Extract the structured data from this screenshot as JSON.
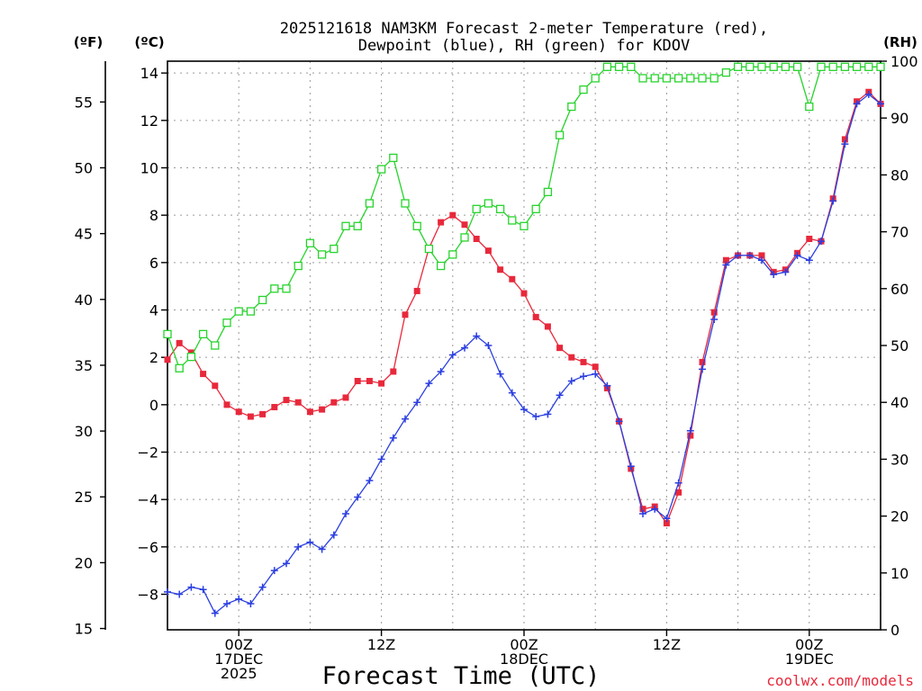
{
  "chart_data": {
    "type": "line",
    "title_line1": "2025121618 NAM3KM Forecast 2-meter Temperature (red),",
    "title_line2": "Dewpoint (blue), RH (green) for KDOV",
    "unit_f": "(ºF)",
    "unit_c": "(ºC)",
    "unit_rh": "(RH)",
    "xlabel": "Forecast Time (UTC)",
    "credit": "coolwx.com/models",
    "x_range_hours": [
      0,
      60
    ],
    "ylim_c": [
      -9.5,
      14.5
    ],
    "ylim_f": [
      14.9,
      58.1
    ],
    "ylim_rh": [
      0,
      100
    ],
    "left_f_ticks": [
      "15",
      "20",
      "25",
      "30",
      "35",
      "40",
      "45",
      "50",
      "55"
    ],
    "left_c_ticks": [
      "−8",
      "−6",
      "−4",
      "−2",
      "0",
      "2",
      "4",
      "6",
      "8",
      "10",
      "12",
      "14"
    ],
    "right_rh_ticks": [
      "0",
      "10",
      "20",
      "30",
      "40",
      "50",
      "60",
      "70",
      "80",
      "90",
      "100"
    ],
    "x_ticks": [
      {
        "hour": 6,
        "labels": [
          "00Z",
          "17DEC",
          "2025"
        ]
      },
      {
        "hour": 18,
        "labels": [
          "12Z"
        ]
      },
      {
        "hour": 30,
        "labels": [
          "00Z",
          "18DEC"
        ]
      },
      {
        "hour": 42,
        "labels": [
          "12Z"
        ]
      },
      {
        "hour": 54,
        "labels": [
          "00Z",
          "19DEC"
        ]
      }
    ],
    "series": [
      {
        "name": "Temperature",
        "color": "#e8283b",
        "marker": "filled-square",
        "unit": "C",
        "values": [
          1.9,
          2.6,
          2.2,
          1.3,
          0.8,
          0.0,
          -0.3,
          -0.5,
          -0.4,
          -0.1,
          0.2,
          0.1,
          -0.3,
          -0.2,
          0.1,
          0.3,
          1.0,
          1.0,
          0.9,
          1.4,
          3.8,
          4.8,
          6.6,
          7.7,
          8.0,
          7.6,
          7.0,
          6.5,
          5.7,
          5.3,
          4.7,
          3.7,
          3.3,
          2.4,
          2.0,
          1.8,
          1.6,
          0.7,
          -0.7,
          -2.7,
          -4.4,
          -4.3,
          -5.0,
          -3.7,
          -1.3,
          1.8,
          3.9,
          6.1,
          6.3,
          6.3,
          6.3,
          5.6,
          5.7,
          6.4,
          7.0,
          6.9,
          8.7,
          11.2,
          12.8,
          13.2,
          12.7
        ]
      },
      {
        "name": "Dewpoint",
        "color": "#2b3fe0",
        "marker": "plus",
        "unit": "C",
        "values": [
          -7.9,
          -8.0,
          -7.7,
          -7.8,
          -8.8,
          -8.4,
          -8.2,
          -8.4,
          -7.7,
          -7.0,
          -6.7,
          -6.0,
          -5.8,
          -6.1,
          -5.5,
          -4.6,
          -3.9,
          -3.2,
          -2.3,
          -1.4,
          -0.6,
          0.1,
          0.9,
          1.4,
          2.1,
          2.4,
          2.9,
          2.5,
          1.3,
          0.5,
          -0.2,
          -0.5,
          -0.4,
          0.4,
          1.0,
          1.2,
          1.3,
          0.8,
          -0.7,
          -2.6,
          -4.6,
          -4.4,
          -4.8,
          -3.3,
          -1.1,
          1.5,
          3.6,
          5.9,
          6.3,
          6.3,
          6.1,
          5.5,
          5.6,
          6.3,
          6.1,
          6.9,
          8.6,
          11.0,
          12.7,
          13.1,
          12.7
        ]
      },
      {
        "name": "RH",
        "color": "#27d42c",
        "marker": "open-square",
        "unit": "%",
        "values": [
          52,
          46,
          48,
          52,
          50,
          54,
          56,
          56,
          58,
          60,
          60,
          64,
          68,
          66,
          67,
          71,
          71,
          75,
          81,
          83,
          75,
          71,
          67,
          64,
          66,
          69,
          74,
          75,
          74,
          72,
          71,
          74,
          77,
          87,
          92,
          95,
          97,
          99,
          99,
          99,
          97,
          97,
          97,
          97,
          97,
          97,
          97,
          98,
          99,
          99,
          99,
          99,
          99,
          99,
          92,
          99,
          99,
          99,
          99,
          99,
          99
        ]
      }
    ]
  }
}
